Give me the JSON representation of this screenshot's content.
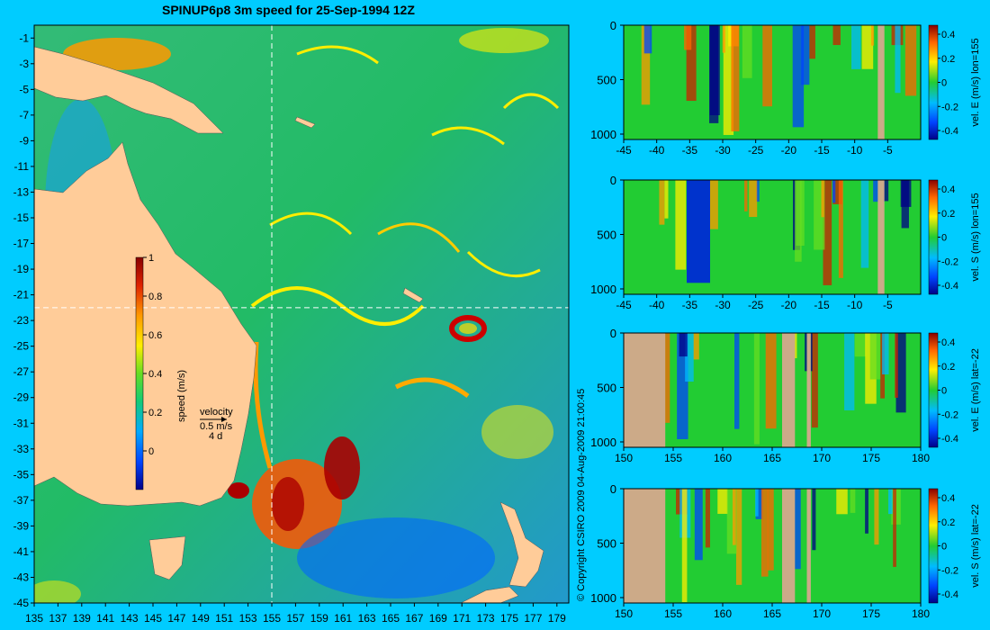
{
  "title": "SPINUP6p8 3m speed for 25-Sep-1994 12Z",
  "copyright": "© Copyright CSIRO 2009   04-Aug-2009 21:00:45",
  "colors": {
    "background": "#00ccff",
    "land": "#ffcc99",
    "section_land": "#ccaa88",
    "cursor": "#ffffff"
  },
  "chart_data": [
    {
      "type": "heatmap",
      "name": "map",
      "x_ticks": [
        "135",
        "137",
        "139",
        "141",
        "143",
        "145",
        "147",
        "149",
        "151",
        "153",
        "155",
        "157",
        "159",
        "161",
        "163",
        "165",
        "167",
        "169",
        "171",
        "173",
        "175",
        "177",
        "179"
      ],
      "y_ticks": [
        "-1",
        "-3",
        "-5",
        "-7",
        "-9",
        "-11",
        "-13",
        "-15",
        "-17",
        "-19",
        "-21",
        "-23",
        "-25",
        "-27",
        "-29",
        "-31",
        "-33",
        "-35",
        "-37",
        "-39",
        "-41",
        "-43",
        "-45"
      ],
      "xlim": [
        135,
        180
      ],
      "ylim": [
        -45,
        0
      ],
      "cursor_lon": 155,
      "cursor_lat": -22,
      "colorbar": {
        "label": "speed (m/s)",
        "ticks": [
          "0",
          "0.2",
          "0.4",
          "0.6",
          "0.8",
          "1"
        ],
        "range": [
          -0.2,
          1
        ]
      },
      "velocity_key": {
        "line1": "velocity",
        "line2": "0.5 m/s",
        "line3": "4 d"
      }
    },
    {
      "type": "heatmap",
      "name": "section-1",
      "x_ticks": [
        "-45",
        "-40",
        "-35",
        "-30",
        "-25",
        "-20",
        "-15",
        "-10",
        "-5"
      ],
      "xlim": [
        -45,
        0
      ],
      "y_ticks": [
        "0",
        "500",
        "1000"
      ],
      "ylim": [
        0,
        1000
      ],
      "cb_ticks": [
        "0.4",
        "0.2",
        "0",
        "-0.2",
        "-0.4"
      ],
      "ylabel": "vel. E (m/s) lon=155"
    },
    {
      "type": "heatmap",
      "name": "section-2",
      "x_ticks": [
        "-45",
        "-40",
        "-35",
        "-30",
        "-25",
        "-20",
        "-15",
        "-10",
        "-5"
      ],
      "xlim": [
        -45,
        0
      ],
      "y_ticks": [
        "0",
        "500",
        "1000"
      ],
      "ylim": [
        0,
        1000
      ],
      "cb_ticks": [
        "0.4",
        "0.2",
        "0",
        "-0.2",
        "-0.4"
      ],
      "ylabel": "vel. S (m/s) lon=155"
    },
    {
      "type": "heatmap",
      "name": "section-3",
      "x_ticks": [
        "150",
        "155",
        "160",
        "165",
        "170",
        "175",
        "180"
      ],
      "xlim": [
        150,
        180
      ],
      "y_ticks": [
        "0",
        "500",
        "1000"
      ],
      "ylim": [
        0,
        1000
      ],
      "cb_ticks": [
        "0.4",
        "0.2",
        "0",
        "-0.2",
        "-0.4"
      ],
      "ylabel": "vel. E (m/s) lat=-22"
    },
    {
      "type": "heatmap",
      "name": "section-4",
      "x_ticks": [
        "150",
        "155",
        "160",
        "165",
        "170",
        "175",
        "180"
      ],
      "xlim": [
        150,
        180
      ],
      "y_ticks": [
        "0",
        "500",
        "1000"
      ],
      "ylim": [
        0,
        1000
      ],
      "cb_ticks": [
        "0.4",
        "0.2",
        "0",
        "-0.2",
        "-0.4"
      ],
      "ylabel": "vel. S (m/s) lat=-22"
    }
  ]
}
